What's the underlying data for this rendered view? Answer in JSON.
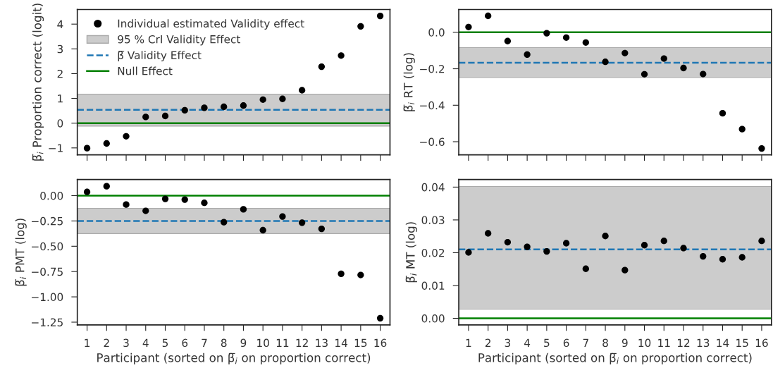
{
  "chart_data": [
    {
      "type": "scatter",
      "ylabel": "β̅$_{i}$ Proportion correct (logit)",
      "categories": [
        "1",
        "2",
        "3",
        "4",
        "5",
        "6",
        "7",
        "8",
        "9",
        "10",
        "11",
        "12",
        "13",
        "14",
        "15",
        "16"
      ],
      "tick_labels": "y",
      "marker": "circle",
      "legend": "top left",
      "series": [
        {
          "name": "Individual estimated Validity effect",
          "color": "#000000",
          "values": [
            -1.01,
            -0.82,
            -0.53,
            0.25,
            0.29,
            0.52,
            0.62,
            0.66,
            0.71,
            0.95,
            0.98,
            1.33,
            2.28,
            2.73,
            3.91,
            4.33
          ]
        }
      ],
      "bands": [
        {
          "axis": "y",
          "from": -0.12,
          "to": 1.17,
          "label": "95 % CrI Validity Effect",
          "color": "#cccccc"
        }
      ],
      "ref_lines": [
        {
          "axis": "y",
          "value": 0.54,
          "label": "β̅ Validity Effect",
          "color": "#1f77b4",
          "line_style": "dashed"
        },
        {
          "axis": "y",
          "value": 0,
          "label": "Null Effect",
          "color": "#008000",
          "line_style": "solid"
        }
      ],
      "ylim": [
        -1.28,
        4.59
      ],
      "yticks": [
        {
          "value": -1,
          "label": "−1"
        },
        0,
        1,
        2,
        3,
        4
      ]
    },
    {
      "type": "scatter",
      "ylabel": "β̅$_{i}$ RT (log)",
      "categories": [
        "1",
        "2",
        "3",
        "4",
        "5",
        "6",
        "7",
        "8",
        "9",
        "10",
        "11",
        "12",
        "13",
        "14",
        "15",
        "16"
      ],
      "tick_labels": "y",
      "marker": "circle",
      "series": [
        {
          "color": "#000000",
          "values": [
            0.029,
            0.09,
            -0.048,
            -0.122,
            -0.005,
            -0.029,
            -0.056,
            -0.162,
            -0.114,
            -0.23,
            -0.144,
            -0.196,
            -0.229,
            -0.444,
            -0.531,
            -0.637
          ]
        }
      ],
      "bands": [
        {
          "axis": "y",
          "from": -0.248,
          "to": -0.084,
          "color": "#cccccc"
        }
      ],
      "ref_lines": [
        {
          "axis": "y",
          "value": -0.167,
          "color": "#1f77b4",
          "line_style": "dashed"
        },
        {
          "axis": "y",
          "value": 0,
          "color": "#008000",
          "line_style": "solid"
        }
      ],
      "ylim": [
        -0.672,
        0.125
      ],
      "yticks": [
        {
          "value": -0.6,
          "label": "−0.6"
        },
        {
          "value": -0.4,
          "label": "−0.4"
        },
        {
          "value": -0.2,
          "label": "−0.2"
        },
        {
          "value": 0,
          "label": "0.0"
        }
      ]
    },
    {
      "type": "scatter",
      "ylabel": "β̅$_{i}$ PMT (log)",
      "xlabel": "Participant (sorted on β̅$_{i}$ on proportion correct)",
      "categories": [
        "1",
        "2",
        "3",
        "4",
        "5",
        "6",
        "7",
        "8",
        "9",
        "10",
        "11",
        "12",
        "13",
        "14",
        "15",
        "16"
      ],
      "marker": "circle",
      "series": [
        {
          "color": "#000000",
          "values": [
            0.037,
            0.093,
            -0.088,
            -0.15,
            -0.032,
            -0.039,
            -0.071,
            -0.262,
            -0.135,
            -0.341,
            -0.206,
            -0.267,
            -0.328,
            -0.772,
            -0.784,
            -1.211
          ]
        }
      ],
      "bands": [
        {
          "axis": "y",
          "from": -0.375,
          "to": -0.125,
          "color": "#cccccc"
        }
      ],
      "ref_lines": [
        {
          "axis": "y",
          "value": -0.25,
          "color": "#1f77b4",
          "line_style": "dashed"
        },
        {
          "axis": "y",
          "value": 0,
          "color": "#008000",
          "line_style": "solid"
        }
      ],
      "ylim": [
        -1.277,
        0.159
      ],
      "yticks": [
        {
          "value": -1.25,
          "label": "−1.25"
        },
        {
          "value": -1.0,
          "label": "−1.00"
        },
        {
          "value": -0.75,
          "label": "−0.75"
        },
        {
          "value": -0.5,
          "label": "−0.50"
        },
        {
          "value": -0.25,
          "label": "−0.25"
        },
        {
          "value": 0,
          "label": "0.00"
        }
      ]
    },
    {
      "type": "scatter",
      "ylabel": "β̅$_{i}$ MT (log)",
      "xlabel": "Participant (sorted on β̅$_{i}$ on proportion correct)",
      "categories": [
        "1",
        "2",
        "3",
        "4",
        "5",
        "6",
        "7",
        "8",
        "9",
        "10",
        "11",
        "12",
        "13",
        "14",
        "15",
        "16"
      ],
      "marker": "circle",
      "series": [
        {
          "color": "#000000",
          "values": [
            0.0201,
            0.0259,
            0.0232,
            0.0218,
            0.0204,
            0.0229,
            0.0151,
            0.0251,
            0.0147,
            0.0223,
            0.0236,
            0.0214,
            0.0189,
            0.018,
            0.0186,
            0.0236
          ]
        }
      ],
      "bands": [
        {
          "axis": "y",
          "from": 0.0028,
          "to": 0.0402,
          "color": "#cccccc"
        }
      ],
      "ref_lines": [
        {
          "axis": "y",
          "value": 0.021,
          "color": "#1f77b4",
          "line_style": "dashed"
        },
        {
          "axis": "y",
          "value": 0,
          "color": "#008000",
          "line_style": "solid"
        }
      ],
      "ylim": [
        -0.002,
        0.0423
      ],
      "yticks": [
        {
          "value": 0,
          "label": "0.00"
        },
        {
          "value": 0.01,
          "label": "0.01"
        },
        {
          "value": 0.02,
          "label": "0.02"
        },
        {
          "value": 0.03,
          "label": "0.03"
        },
        {
          "value": 0.04,
          "label": "0.04"
        }
      ]
    }
  ]
}
